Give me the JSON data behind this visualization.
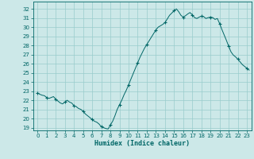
{
  "xlabel": "Humidex (Indice chaleur)",
  "bg_color": "#cce8e8",
  "grid_color": "#99cccc",
  "line_color": "#006666",
  "marker_color": "#006666",
  "xlim": [
    -0.5,
    23.5
  ],
  "ylim": [
    18.7,
    32.8
  ],
  "yticks": [
    19,
    20,
    21,
    22,
    23,
    24,
    25,
    26,
    27,
    28,
    29,
    30,
    31,
    32
  ],
  "xticks": [
    0,
    1,
    2,
    3,
    4,
    5,
    6,
    7,
    8,
    9,
    10,
    11,
    12,
    13,
    14,
    15,
    16,
    17,
    18,
    19,
    20,
    21,
    22,
    23
  ],
  "x": [
    0,
    0.25,
    0.5,
    0.75,
    1,
    1.25,
    1.5,
    1.75,
    2,
    2.25,
    2.5,
    2.75,
    3,
    3.25,
    3.5,
    3.75,
    4,
    4.25,
    4.5,
    4.75,
    5,
    5.25,
    5.5,
    5.75,
    6,
    6.25,
    6.5,
    6.75,
    7,
    7.25,
    7.5,
    7.75,
    8,
    8.25,
    8.5,
    8.75,
    9,
    9.25,
    9.5,
    9.75,
    10,
    10.25,
    10.5,
    10.75,
    11,
    11.25,
    11.5,
    11.75,
    12,
    12.25,
    12.5,
    12.75,
    13,
    13.25,
    13.5,
    13.75,
    14,
    14.25,
    14.5,
    14.75,
    15,
    15.25,
    15.5,
    15.75,
    16,
    16.25,
    16.5,
    16.75,
    17,
    17.25,
    17.5,
    17.75,
    18,
    18.25,
    18.5,
    18.75,
    19,
    19.25,
    19.5,
    19.75,
    20,
    20.25,
    20.5,
    20.75,
    21,
    21.25,
    21.5,
    21.75,
    22,
    22.25,
    22.5,
    22.75,
    23,
    23.25
  ],
  "y": [
    22.8,
    22.65,
    22.55,
    22.5,
    22.3,
    22.2,
    22.3,
    22.4,
    22.1,
    21.9,
    21.7,
    21.6,
    21.8,
    22.0,
    21.8,
    21.7,
    21.4,
    21.3,
    21.1,
    21.0,
    20.8,
    20.5,
    20.3,
    20.1,
    19.9,
    19.7,
    19.6,
    19.4,
    19.1,
    19.0,
    18.9,
    18.85,
    19.3,
    19.7,
    20.3,
    21.0,
    21.5,
    22.0,
    22.6,
    23.1,
    23.7,
    24.3,
    24.9,
    25.5,
    26.1,
    26.7,
    27.2,
    27.7,
    28.1,
    28.5,
    28.9,
    29.3,
    29.7,
    30.0,
    30.15,
    30.3,
    30.5,
    30.9,
    31.3,
    31.55,
    31.8,
    32.0,
    31.7,
    31.3,
    31.1,
    31.25,
    31.45,
    31.6,
    31.35,
    31.05,
    30.95,
    31.1,
    31.2,
    31.15,
    30.95,
    31.05,
    31.1,
    31.05,
    30.85,
    30.95,
    30.4,
    29.75,
    29.15,
    28.55,
    27.9,
    27.3,
    26.95,
    26.75,
    26.5,
    26.2,
    25.9,
    25.7,
    25.5,
    25.3
  ],
  "marker_x": [
    0,
    1,
    2,
    3,
    4,
    5,
    6,
    7,
    8,
    9,
    10,
    11,
    12,
    13,
    14,
    15,
    16,
    17,
    18,
    19,
    20,
    21,
    22,
    23
  ],
  "marker_y": [
    22.8,
    22.3,
    22.1,
    21.8,
    21.4,
    20.8,
    19.9,
    19.1,
    19.3,
    21.5,
    23.7,
    26.1,
    28.1,
    29.7,
    30.5,
    31.8,
    31.1,
    31.35,
    31.2,
    31.1,
    30.4,
    27.9,
    26.5,
    25.5
  ]
}
